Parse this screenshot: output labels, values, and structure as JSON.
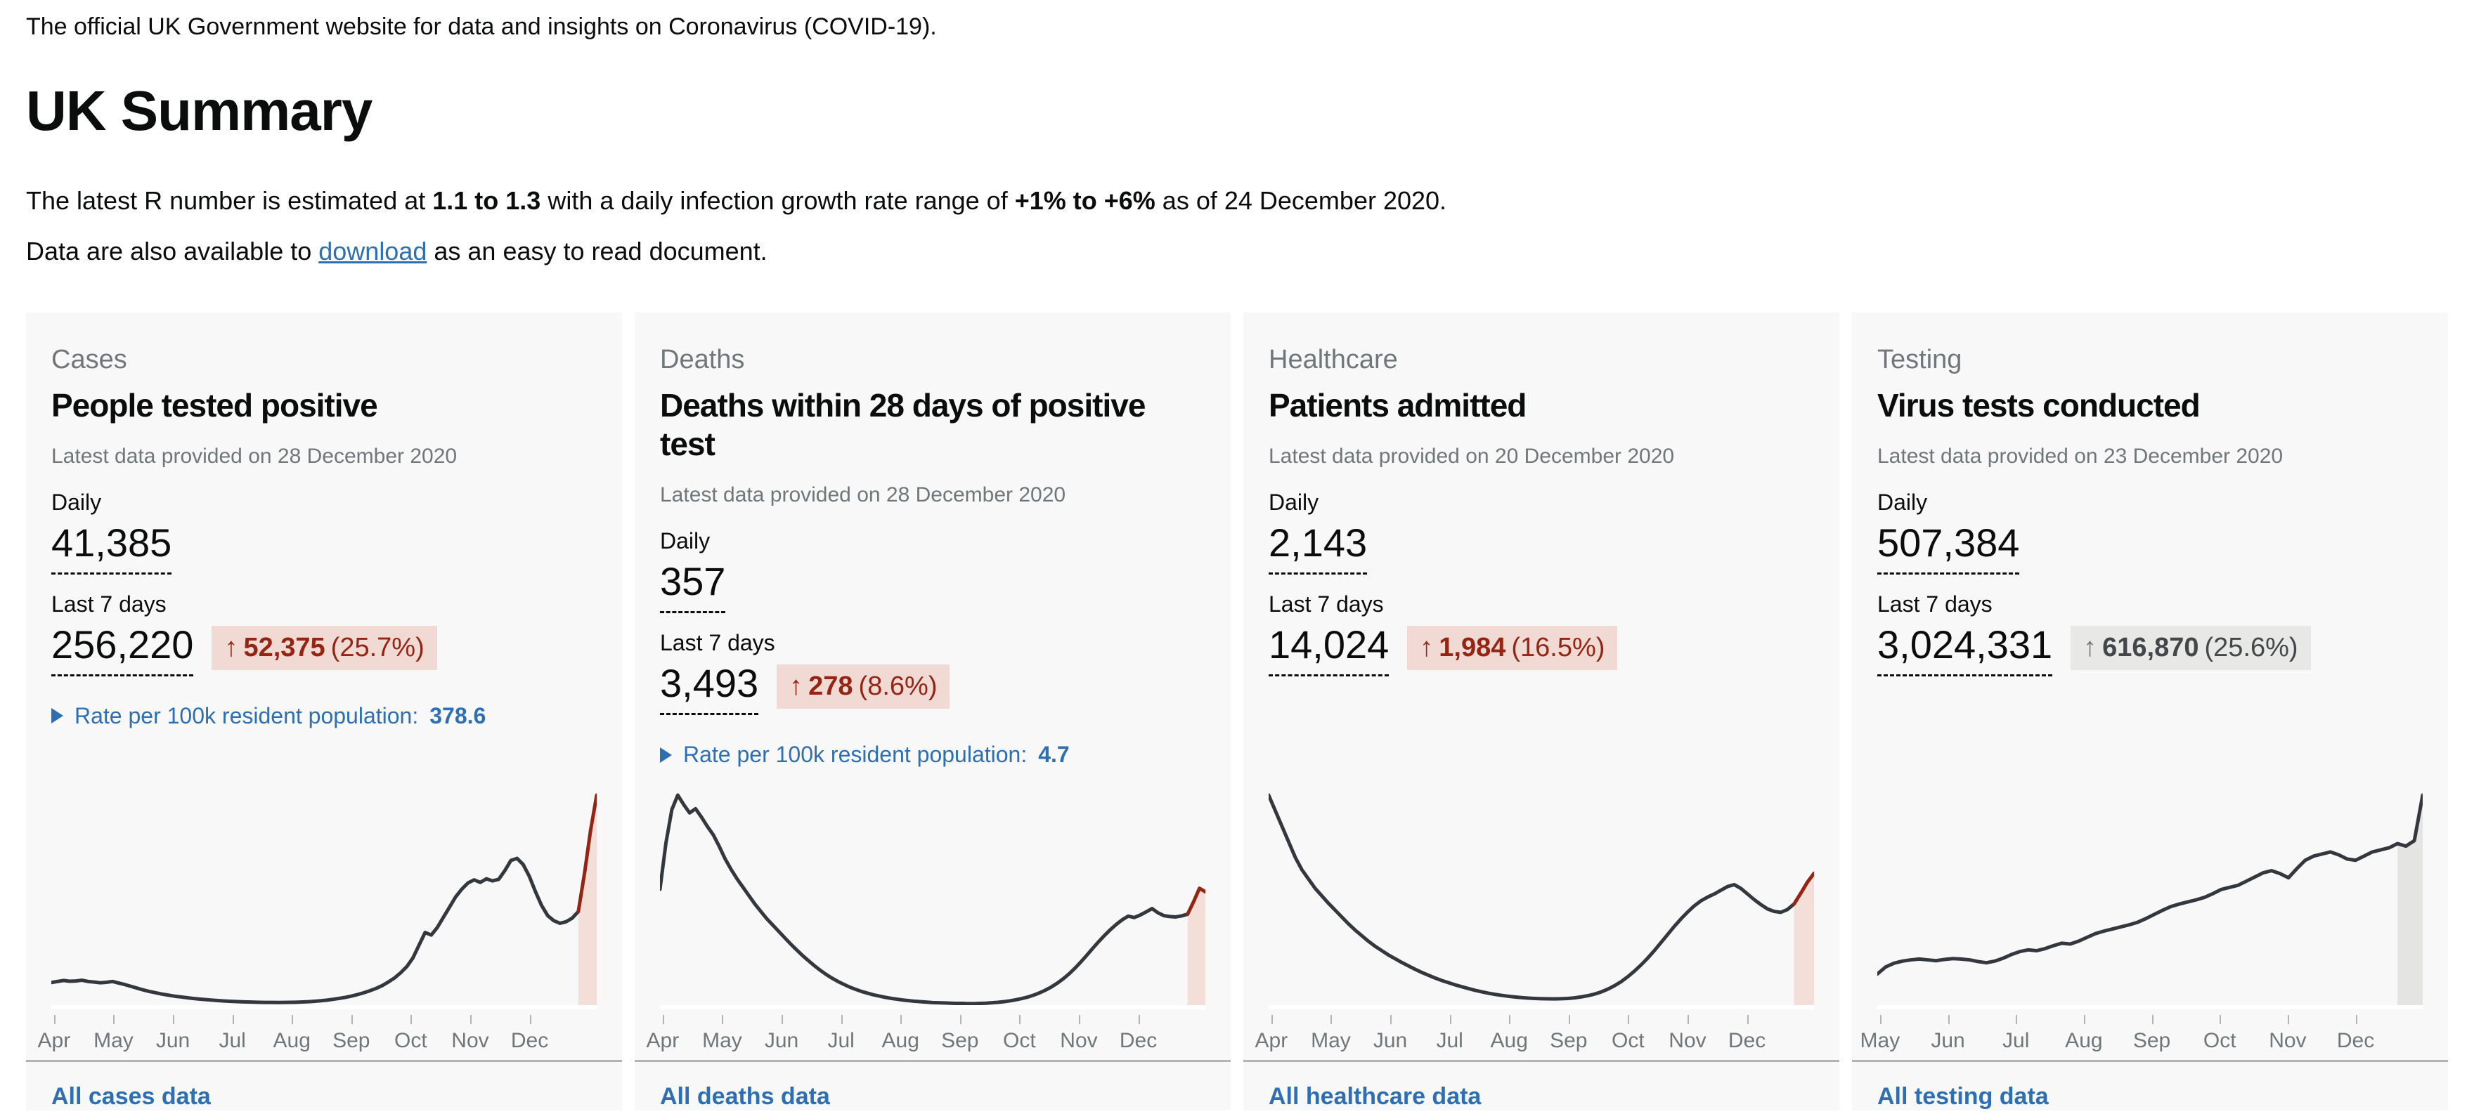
{
  "page": {
    "tagline": "The official UK Government website for data and insights on Coronavirus (COVID-19).",
    "heading": "UK Summary",
    "r_text_prefix": "The latest R number is estimated at ",
    "r_value": "1.1 to 1.3",
    "r_text_mid": " with a daily infection growth rate range of ",
    "growth_value": "+1% to +6%",
    "r_text_suffix": " as of 24 December 2020.",
    "download_prefix": "Data are also available to ",
    "download_link": "download",
    "download_suffix": " as an easy to read document."
  },
  "colors": {
    "link_blue": "#2e6fb3",
    "text_black": "#0b0c0c",
    "muted_grey": "#6f777b",
    "card_background": "#f8f8f8",
    "divider_grey": "#b1b4b6",
    "alert_red": "#942514",
    "alert_red_tint": "#f1dad4",
    "neutral_grey_tint": "#e8e8e6"
  },
  "cards": [
    {
      "category": "Cases",
      "title": "People tested positive",
      "caption": "Latest data provided on 28 December 2020",
      "daily_label": "Daily",
      "daily_value": "41,385",
      "last7_label": "Last 7 days",
      "last7_value": "256,220",
      "badge": {
        "arrow": "↑",
        "value": "52,375",
        "percent": "(25.7%)",
        "tone": "bad"
      },
      "rate": {
        "label": "Rate per 100k resident population: ",
        "value": "378.6"
      },
      "footer_link": "All cases data",
      "chart_data": {
        "type": "line",
        "x_tick_labels": [
          "Apr",
          "May",
          "Jun",
          "Jul",
          "Aug",
          "Sep",
          "Oct",
          "Nov",
          "Dec"
        ],
        "ylim": [
          0,
          41385
        ],
        "grid": false,
        "line_color": "#32383e",
        "highlight_color": "#942514",
        "band_color": "#f3ded8",
        "highlight_last_points": 3,
        "band_last_points": 3,
        "values": [
          4700,
          4900,
          5100,
          4950,
          5000,
          5150,
          4900,
          4800,
          4650,
          4750,
          4900,
          4600,
          4300,
          3950,
          3600,
          3250,
          2950,
          2700,
          2450,
          2250,
          2050,
          1900,
          1750,
          1600,
          1480,
          1380,
          1280,
          1180,
          1100,
          1030,
          980,
          930,
          890,
          860,
          830,
          810,
          800,
          790,
          800,
          820,
          850,
          890,
          950,
          1030,
          1130,
          1260,
          1420,
          1600,
          1800,
          2050,
          2350,
          2700,
          3100,
          3550,
          4100,
          4800,
          5600,
          6600,
          7800,
          9500,
          12000,
          14500,
          14000,
          15500,
          17500,
          19500,
          21500,
          23000,
          24200,
          24800,
          24300,
          25000,
          24600,
          24900,
          26600,
          28600,
          29000,
          27800,
          25500,
          22500,
          19800,
          17800,
          16800,
          16300,
          16600,
          17300,
          18600,
          26000,
          34500,
          41385
        ]
      }
    },
    {
      "category": "Deaths",
      "title": "Deaths within 28 days of positive test",
      "caption": "Latest data provided on 28 December 2020",
      "daily_label": "Daily",
      "daily_value": "357",
      "last7_label": "Last 7 days",
      "last7_value": "3,493",
      "badge": {
        "arrow": "↑",
        "value": "278",
        "percent": "(8.6%)",
        "tone": "bad"
      },
      "rate": {
        "label": "Rate per 100k resident population: ",
        "value": "4.7"
      },
      "footer_link": "All deaths data",
      "chart_data": {
        "type": "line",
        "x_tick_labels": [
          "Apr",
          "May",
          "Jun",
          "Jul",
          "Aug",
          "Sep",
          "Oct",
          "Nov",
          "Dec"
        ],
        "ylim": [
          0,
          1010
        ],
        "grid": false,
        "line_color": "#32383e",
        "highlight_color": "#942514",
        "band_color": "#f3ded8",
        "highlight_last_points": 3,
        "band_last_points": 3,
        "values": [
          560,
          780,
          940,
          1010,
          965,
          925,
          945,
          905,
          860,
          820,
          765,
          705,
          655,
          610,
          570,
          530,
          490,
          455,
          420,
          390,
          360,
          330,
          300,
          272,
          245,
          220,
          196,
          174,
          154,
          136,
          120,
          106,
          93,
          82,
          72,
          64,
          56,
          50,
          44,
          39,
          35,
          31,
          28,
          25,
          23,
          21,
          19,
          18,
          17,
          16,
          15,
          15,
          14,
          14,
          15,
          16,
          18,
          20,
          23,
          27,
          32,
          38,
          45,
          54,
          65,
          78,
          93,
          111,
          132,
          156,
          183,
          213,
          245,
          278,
          310,
          340,
          368,
          393,
          415,
          432,
          425,
          437,
          452,
          468,
          448,
          434,
          430,
          428,
          433,
          441,
          500,
          565,
          548
        ]
      }
    },
    {
      "category": "Healthcare",
      "title": "Patients admitted",
      "caption": "Latest data provided on 20 December 2020",
      "daily_label": "Daily",
      "daily_value": "2,143",
      "last7_label": "Last 7 days",
      "last7_value": "14,024",
      "badge": {
        "arrow": "↑",
        "value": "1,984",
        "percent": "(16.5%)",
        "tone": "bad"
      },
      "rate": null,
      "footer_link": "All healthcare data",
      "chart_data": {
        "type": "line",
        "x_tick_labels": [
          "Apr",
          "May",
          "Jun",
          "Jul",
          "Aug",
          "Sep",
          "Oct",
          "Nov",
          "Dec"
        ],
        "ylim": [
          0,
          3400
        ],
        "grid": false,
        "line_color": "#32383e",
        "highlight_color": "#942514",
        "band_color": "#f3ded8",
        "highlight_last_points": 3,
        "band_last_points": 3,
        "values": [
          3400,
          3150,
          2900,
          2650,
          2400,
          2200,
          2050,
          1900,
          1780,
          1660,
          1550,
          1440,
          1330,
          1230,
          1140,
          1050,
          970,
          900,
          830,
          770,
          710,
          655,
          600,
          550,
          505,
          460,
          420,
          385,
          350,
          320,
          290,
          262,
          238,
          215,
          196,
          180,
          166,
          154,
          144,
          136,
          130,
          126,
          124,
          123,
          125,
          130,
          140,
          155,
          175,
          200,
          235,
          280,
          335,
          400,
          480,
          570,
          670,
          780,
          900,
          1030,
          1160,
          1290,
          1410,
          1520,
          1620,
          1700,
          1760,
          1810,
          1870,
          1930,
          1960,
          1900,
          1810,
          1720,
          1640,
          1570,
          1530,
          1515,
          1560,
          1650,
          1820,
          2000,
          2143
        ]
      }
    },
    {
      "category": "Testing",
      "title": "Virus tests conducted",
      "caption": "Latest data provided on 23 December 2020",
      "daily_label": "Daily",
      "daily_value": "507,384",
      "last7_label": "Last 7 days",
      "last7_value": "3,024,331",
      "badge": {
        "arrow": "↑",
        "value": "616,870",
        "percent": "(25.6%)",
        "tone": "neutral"
      },
      "rate": null,
      "footer_link": "All testing data",
      "chart_data": {
        "type": "line",
        "x_tick_labels": [
          "May",
          "Jun",
          "Jul",
          "Aug",
          "Sep",
          "Oct",
          "Nov",
          "Dec"
        ],
        "ylim": [
          0,
          507384
        ],
        "grid": false,
        "line_color": "#32383e",
        "highlight_color": null,
        "band_color": "#e4e4e2",
        "highlight_last_points": 0,
        "band_last_points": 3,
        "values": [
          78000,
          95000,
          104000,
          109000,
          112000,
          114000,
          112000,
          110000,
          113000,
          115000,
          114000,
          112000,
          108000,
          105000,
          109000,
          116000,
          125000,
          132000,
          136000,
          134000,
          139000,
          146000,
          152000,
          150000,
          157000,
          166000,
          175000,
          181000,
          186000,
          191000,
          196000,
          202000,
          211000,
          221000,
          231000,
          240000,
          246000,
          251000,
          256000,
          262000,
          271000,
          281000,
          286000,
          291000,
          301000,
          311000,
          321000,
          326000,
          319000,
          309000,
          331000,
          351000,
          361000,
          366000,
          371000,
          364000,
          354000,
          351000,
          361000,
          371000,
          376000,
          381000,
          391000,
          385000,
          398000,
          507384
        ]
      }
    }
  ]
}
